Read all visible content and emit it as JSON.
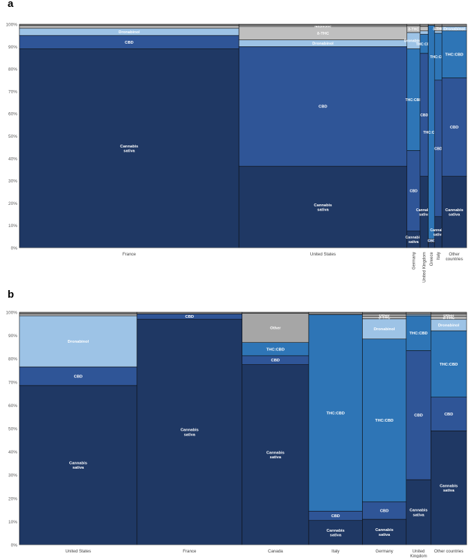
{
  "panels": [
    {
      "letter": "a"
    },
    {
      "letter": "b"
    }
  ],
  "chart_data": [
    {
      "type": "marimekko",
      "panel": "a",
      "ylim": [
        0,
        100
      ],
      "yticks": [
        "0%",
        "10%",
        "20%",
        "30%",
        "40%",
        "50%",
        "60%",
        "70%",
        "80%",
        "90%",
        "100%"
      ],
      "colors": {
        "Cannabis sativa": "#1f3864",
        "CBD": "#2f5597",
        "THC:CBD": "#2e75b6",
        "Dronabinol": "#9dc3e6",
        "δ-THC": "#bfbfbf",
        "Other": "#a6a6a6",
        "Nabilone": "#d9d9d9",
        "cap": "#7f7f7f"
      },
      "columns": [
        {
          "category": "France",
          "width_share": 0.515,
          "segments": [
            {
              "name": "Cannabis sativa",
              "label": "Cannabis\nsativa",
              "value": 89
            },
            {
              "name": "CBD",
              "label": "CBD",
              "value": 6
            },
            {
              "name": "Dronabinol",
              "label": "Dronabinol",
              "value": 3.2
            },
            {
              "name": "δ-THC",
              "label": "",
              "value": 1.2
            },
            {
              "name": "cap",
              "label": "",
              "value": 0.6
            }
          ]
        },
        {
          "category": "United States",
          "width_share": 0.394,
          "segments": [
            {
              "name": "Cannabis sativa",
              "label": "Cannabis\nsativa",
              "value": 36.5
            },
            {
              "name": "CBD",
              "label": "CBD",
              "value": 53.5
            },
            {
              "name": "Dronabinol",
              "label": "Dronabinol",
              "value": 3
            },
            {
              "name": "δ-THC",
              "label": "δ-THC",
              "value": 6
            },
            {
              "name": "Nabilone",
              "label": "Nabilone",
              "value": 0.5
            },
            {
              "name": "cap",
              "label": "",
              "value": 0.5
            }
          ]
        },
        {
          "category": "Germany",
          "width_share": 0.031,
          "segments": [
            {
              "name": "Cannabis sativa",
              "label": "Cannabis\nsativa",
              "value": 7.5
            },
            {
              "name": "CBD",
              "label": "CBD",
              "value": 36
            },
            {
              "name": "THC:CBD",
              "label": "THC:CBD",
              "value": 45.5
            },
            {
              "name": "Dronabinol",
              "label": "Dronabinol",
              "value": 7.3
            },
            {
              "name": "δ-THC",
              "label": "δ-THC",
              "value": 3
            },
            {
              "name": "cap",
              "label": "",
              "value": 0.7
            }
          ]
        },
        {
          "category": "United Kingdom",
          "width_share": 0.019,
          "segments": [
            {
              "name": "Cannabis sativa",
              "label": "Cannabis\nsativa",
              "value": 32
            },
            {
              "name": "CBD",
              "label": "CBD",
              "value": 55
            },
            {
              "name": "THC:CBD",
              "label": "THC:CBD",
              "value": 8.5
            },
            {
              "name": "Dronabinol",
              "label": "",
              "value": 1.5
            },
            {
              "name": "δ-THC",
              "label": "",
              "value": 2
            },
            {
              "name": "cap",
              "label": "",
              "value": 1
            }
          ]
        },
        {
          "category": "Greece",
          "width_share": 0.015,
          "segments": [
            {
              "name": "Cannabis sativa",
              "label": "",
              "value": 2.5
            },
            {
              "name": "CBD",
              "label": "CBD",
              "value": 1.5
            },
            {
              "name": "THC:CBD",
              "label": "THC:CBD",
              "value": 95.5
            },
            {
              "name": "cap",
              "label": "",
              "value": 0.5
            }
          ]
        },
        {
          "category": "Italy",
          "width_share": 0.017,
          "segments": [
            {
              "name": "Cannabis sativa",
              "label": "Cannabis\nsativa",
              "value": 14
            },
            {
              "name": "CBD",
              "label": "CBD",
              "value": 61
            },
            {
              "name": "THC:CBD",
              "label": "THC:CBD",
              "value": 21
            },
            {
              "name": "Dronabinol",
              "label": "",
              "value": 1
            },
            {
              "name": "δ-THC",
              "label": "δ-THC",
              "value": 2
            },
            {
              "name": "cap",
              "label": "",
              "value": 1
            }
          ]
        },
        {
          "category": "Other countries",
          "width_share": 0.058,
          "segments": [
            {
              "name": "Cannabis sativa",
              "label": "Cannabis\nsativa",
              "value": 32
            },
            {
              "name": "CBD",
              "label": "CBD",
              "value": 44
            },
            {
              "name": "THC:CBD",
              "label": "THC:CBD",
              "value": 21
            },
            {
              "name": "Dronabinol",
              "label": "Dronabinol",
              "value": 2
            },
            {
              "name": "cap",
              "label": "",
              "value": 1
            }
          ]
        }
      ]
    },
    {
      "type": "marimekko",
      "panel": "b",
      "ylim": [
        0,
        100
      ],
      "yticks": [
        "0%",
        "10%",
        "20%",
        "30%",
        "40%",
        "50%",
        "60%",
        "70%",
        "80%",
        "90%",
        "100%"
      ],
      "colors": {
        "Cannabis sativa": "#1f3864",
        "CBD": "#2f5597",
        "THC:CBD": "#2e75b6",
        "Dronabinol": "#9dc3e6",
        "δ-THC": "#bfbfbf",
        "Other": "#a6a6a6",
        "cap": "#7f7f7f"
      },
      "columns": [
        {
          "category": "United States",
          "width_share": 0.263,
          "segments": [
            {
              "name": "Cannabis sativa",
              "label": "Cannabis\nsativa",
              "value": 68.5
            },
            {
              "name": "CBD",
              "label": "CBD",
              "value": 8
            },
            {
              "name": "Dronabinol",
              "label": "Dronabinol",
              "value": 22
            },
            {
              "name": "δ-THC",
              "label": "",
              "value": 0.8
            },
            {
              "name": "cap",
              "label": "",
              "value": 0.7
            }
          ]
        },
        {
          "category": "France",
          "width_share": 0.235,
          "segments": [
            {
              "name": "Cannabis sativa",
              "label": "Cannabis\nsativa",
              "value": 97
            },
            {
              "name": "CBD",
              "label": "CBD",
              "value": 2.3
            },
            {
              "name": "cap",
              "label": "",
              "value": 0.7
            }
          ]
        },
        {
          "category": "Canada",
          "width_share": 0.149,
          "segments": [
            {
              "name": "Cannabis sativa",
              "label": "Cannabis\nsativa",
              "value": 77.5
            },
            {
              "name": "CBD",
              "label": "CBD",
              "value": 3.8
            },
            {
              "name": "THC:CBD",
              "label": "THC:CBD",
              "value": 5.7
            },
            {
              "name": "Other",
              "label": "Other",
              "value": 12.5
            },
            {
              "name": "cap",
              "label": "",
              "value": 0.5
            }
          ]
        },
        {
          "category": "Italy",
          "width_share": 0.12,
          "segments": [
            {
              "name": "Cannabis sativa",
              "label": "Cannabis\nsativa",
              "value": 10.5
            },
            {
              "name": "CBD",
              "label": "CBD",
              "value": 4
            },
            {
              "name": "THC:CBD",
              "label": "THC:CBD",
              "value": 84.5
            },
            {
              "name": "cap",
              "label": "",
              "value": 1
            }
          ]
        },
        {
          "category": "Germany",
          "width_share": 0.098,
          "segments": [
            {
              "name": "Cannabis sativa",
              "label": "Cannabis\nsativa",
              "value": 11
            },
            {
              "name": "CBD",
              "label": "CBD",
              "value": 7.5
            },
            {
              "name": "THC:CBD",
              "label": "THC:CBD",
              "value": 70
            },
            {
              "name": "Dronabinol",
              "label": "Dronabinol",
              "value": 8.7
            },
            {
              "name": "δ-THC",
              "label": "δ-THC",
              "value": 1
            },
            {
              "name": "Other",
              "label": "Other",
              "value": 1
            },
            {
              "name": "cap",
              "label": "",
              "value": 0.8
            }
          ]
        },
        {
          "category": "United Kingdom",
          "width_share": 0.055,
          "segments": [
            {
              "name": "Cannabis sativa",
              "label": "Cannabis\nsativa",
              "value": 28
            },
            {
              "name": "CBD",
              "label": "CBD",
              "value": 55.5
            },
            {
              "name": "THC:CBD",
              "label": "THC:CBD",
              "value": 15
            },
            {
              "name": "Dronabinol",
              "label": "",
              "value": 0.6
            },
            {
              "name": "cap",
              "label": "",
              "value": 0.9
            }
          ]
        },
        {
          "category": "Other countries",
          "width_share": 0.08,
          "segments": [
            {
              "name": "Cannabis sativa",
              "label": "Cannabis\nsativa",
              "value": 49
            },
            {
              "name": "CBD",
              "label": "CBD",
              "value": 14.5
            },
            {
              "name": "THC:CBD",
              "label": "THC:CBD",
              "value": 28.5
            },
            {
              "name": "Dronabinol",
              "label": "Dronabinol",
              "value": 5
            },
            {
              "name": "δ-THC",
              "label": "δ-THC",
              "value": 1.2
            },
            {
              "name": "Other",
              "label": "Other",
              "value": 1
            },
            {
              "name": "cap",
              "label": "",
              "value": 0.8
            }
          ]
        }
      ]
    }
  ]
}
